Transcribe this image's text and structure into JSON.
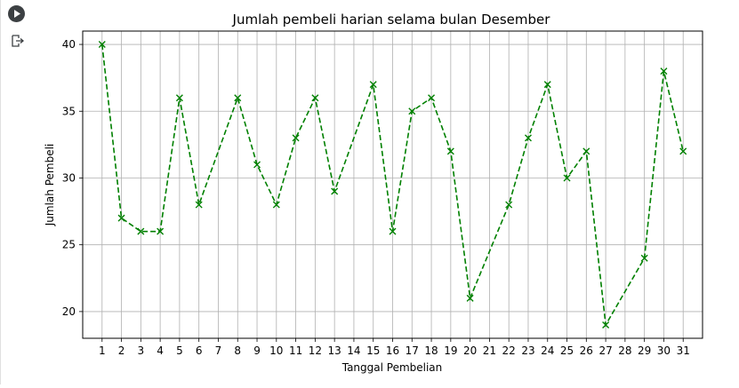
{
  "cell": {
    "run_icon": "play-icon",
    "output_icon": "output-redirect-icon"
  },
  "colors": {
    "line": "#008000",
    "grid": "#b0b0b0",
    "axis": "#000000",
    "gutter_border": "#e0e0e0",
    "run_button": "#3c4043"
  },
  "chart_data": {
    "type": "line",
    "title": "Jumlah pembeli harian selama bulan Desember",
    "xlabel": "Tanggal Pembelian",
    "ylabel": "Jumlah Pembeli",
    "x": [
      1,
      2,
      3,
      4,
      5,
      6,
      8,
      9,
      10,
      11,
      12,
      13,
      15,
      16,
      17,
      18,
      19,
      20,
      22,
      23,
      24,
      25,
      26,
      27,
      29,
      30,
      31
    ],
    "series": [
      {
        "values": [
          40,
          27,
          26,
          26,
          36,
          28,
          36,
          31,
          28,
          33,
          36,
          29,
          37,
          26,
          35,
          36,
          32,
          21,
          28,
          33,
          37,
          30,
          32,
          19,
          24,
          38,
          32
        ],
        "color": "#008000",
        "linestyle": "dashed",
        "marker": "x"
      }
    ],
    "xticks": [
      "1",
      "2",
      "3",
      "4",
      "5",
      "6",
      "7",
      "8",
      "9",
      "10",
      "11",
      "12",
      "13",
      "14",
      "15",
      "16",
      "17",
      "18",
      "19",
      "20",
      "21",
      "22",
      "23",
      "24",
      "25",
      "26",
      "27",
      "28",
      "29",
      "30",
      "31"
    ],
    "yticks": [
      "20",
      "25",
      "30",
      "35",
      "40"
    ],
    "xlim": [
      0.0,
      32.0
    ],
    "ylim": [
      18.0,
      41.0
    ],
    "grid": true,
    "legend": "none"
  }
}
